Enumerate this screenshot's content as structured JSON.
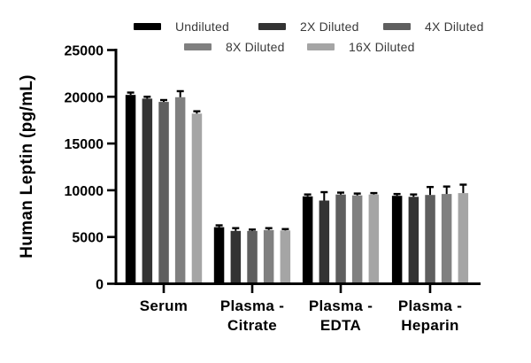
{
  "chart_data": {
    "type": "bar",
    "title": "",
    "xlabel": "",
    "ylabel": "Human Leptin (pg/mL)",
    "ylim": [
      0,
      25000
    ],
    "yticks": [
      0,
      5000,
      10000,
      15000,
      20000,
      25000
    ],
    "grid": false,
    "legend_position": "top",
    "axis_color": "#000000",
    "legend_text_color": "#3a3a3a",
    "categories": [
      "Serum",
      "Plasma -\nCitrate",
      "Plasma -\nEDTA",
      "Plasma -\nHeparin"
    ],
    "series": [
      {
        "name": "Undiluted",
        "color": "#000000",
        "values": [
          20200,
          6050,
          9350,
          9400
        ],
        "errors": [
          250,
          200,
          200,
          200
        ]
      },
      {
        "name": "2X Diluted",
        "color": "#333333",
        "values": [
          19800,
          5650,
          8900,
          9300
        ],
        "errors": [
          200,
          300,
          900,
          250
        ]
      },
      {
        "name": "4X Diluted",
        "color": "#5f5f5f",
        "values": [
          19450,
          5650,
          9550,
          9500
        ],
        "errors": [
          200,
          150,
          200,
          850
        ]
      },
      {
        "name": "8X Diluted",
        "color": "#808080",
        "values": [
          19950,
          5750,
          9450,
          9600
        ],
        "errors": [
          650,
          200,
          200,
          800
        ]
      },
      {
        "name": "16X Diluted",
        "color": "#a5a5a5",
        "values": [
          18200,
          5700,
          9550,
          9700
        ],
        "errors": [
          250,
          150,
          150,
          900
        ]
      }
    ],
    "legend_rows": [
      [
        0,
        1,
        2
      ],
      [
        3,
        4
      ]
    ]
  }
}
